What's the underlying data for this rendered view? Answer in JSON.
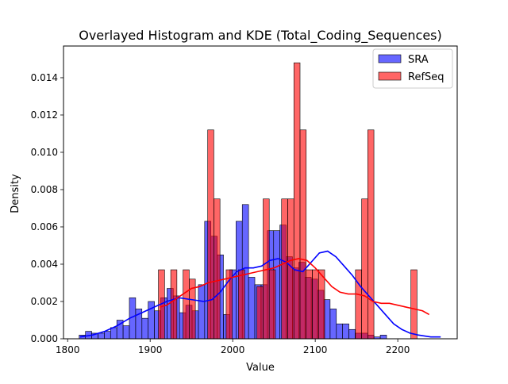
{
  "chart_data": {
    "type": "histogram",
    "title": "Overlayed Histogram and KDE (Total_Coding_Sequences)",
    "xlabel": "Value",
    "ylabel": "Density",
    "xlim": [
      1795,
      2272
    ],
    "ylim": [
      0,
      0.0157
    ],
    "xticks": [
      1800,
      1900,
      2000,
      2100,
      2200
    ],
    "yticks": [
      0.0,
      0.002,
      0.004,
      0.006,
      0.008,
      0.01,
      0.012,
      0.014
    ],
    "ytick_labels": [
      "0.000",
      "0.002",
      "0.004",
      "0.006",
      "0.008",
      "0.010",
      "0.012",
      "0.014"
    ],
    "legend_position": "top-right",
    "series": [
      {
        "name": "SRA",
        "color": "#0000ff",
        "bin_start": 1814,
        "bin_width": 7.6,
        "values": [
          0.0002,
          0.0004,
          0.0003,
          0.0003,
          0.0004,
          0.0006,
          0.001,
          0.0007,
          0.0022,
          0.0016,
          0.0011,
          0.002,
          0.0015,
          0.0022,
          0.0027,
          0.0023,
          0.0014,
          0.0018,
          0.0015,
          0.0029,
          0.0063,
          0.0055,
          0.0045,
          0.0013,
          0.0037,
          0.0063,
          0.0072,
          0.0033,
          0.0029,
          0.0029,
          0.0058,
          0.0058,
          0.0061,
          0.0044,
          0.0038,
          0.0041,
          0.0033,
          0.0032,
          0.0026,
          0.0021,
          0.0016,
          0.0008,
          0.0008,
          0.0005,
          0.0003,
          0.0003,
          0.0002,
          0.0001,
          0.0002
        ]
      },
      {
        "name": "RefSeq",
        "color": "#ff0000",
        "bin_start": 1910,
        "bin_width": 7.46,
        "values": [
          0.0037,
          0,
          0.0037,
          0,
          0.0037,
          0.0032,
          0,
          0,
          0.0112,
          0.0075,
          0,
          0.0037,
          0,
          0.0037,
          0,
          0,
          0.0028,
          0.0075,
          0.0037,
          0,
          0.0075,
          0.0075,
          0.0148,
          0.0112,
          0.0037,
          0.0037,
          0.0037,
          0,
          0,
          0,
          0,
          0,
          0.0037,
          0.0075,
          0.0112,
          0,
          0,
          0,
          0,
          0,
          0,
          0.0037
        ]
      }
    ],
    "kde": [
      {
        "series": "SRA",
        "x": [
          1815,
          1830,
          1845,
          1860,
          1875,
          1890,
          1905,
          1920,
          1935,
          1950,
          1965,
          1975,
          1985,
          1995,
          2005,
          2015,
          2025,
          2035,
          2045,
          2055,
          2065,
          2075,
          2085,
          2095,
          2105,
          2115,
          2125,
          2135,
          2145,
          2155,
          2165,
          2175,
          2185,
          2195,
          2205,
          2215,
          2225,
          2240,
          2252
        ],
        "y": [
          0.0001,
          0.0002,
          0.0004,
          0.0007,
          0.0011,
          0.0014,
          0.0017,
          0.002,
          0.0022,
          0.0021,
          0.002,
          0.0021,
          0.0025,
          0.0031,
          0.0036,
          0.0038,
          0.0038,
          0.0039,
          0.0042,
          0.0043,
          0.0041,
          0.0037,
          0.0036,
          0.0041,
          0.0046,
          0.0047,
          0.0044,
          0.0039,
          0.0034,
          0.0028,
          0.0023,
          0.0018,
          0.0013,
          0.0008,
          0.0005,
          0.0003,
          0.0002,
          0.0001,
          0.0001
        ]
      },
      {
        "series": "RefSeq",
        "x": [
          1912,
          1920,
          1930,
          1940,
          1950,
          1960,
          1970,
          1980,
          1990,
          2000,
          2010,
          2020,
          2030,
          2040,
          2050,
          2060,
          2070,
          2080,
          2090,
          2100,
          2110,
          2120,
          2130,
          2140,
          2150,
          2160,
          2170,
          2180,
          2190,
          2200,
          2210,
          2220,
          2230,
          2238
        ],
        "y": [
          0.0017,
          0.0018,
          0.0021,
          0.0024,
          0.0027,
          0.0028,
          0.003,
          0.0031,
          0.0032,
          0.0033,
          0.0034,
          0.0035,
          0.0036,
          0.0037,
          0.0038,
          0.004,
          0.0042,
          0.0043,
          0.0042,
          0.0038,
          0.0033,
          0.0028,
          0.0025,
          0.0024,
          0.0024,
          0.0023,
          0.002,
          0.0019,
          0.0019,
          0.0018,
          0.0017,
          0.0016,
          0.0015,
          0.0013
        ]
      }
    ]
  }
}
